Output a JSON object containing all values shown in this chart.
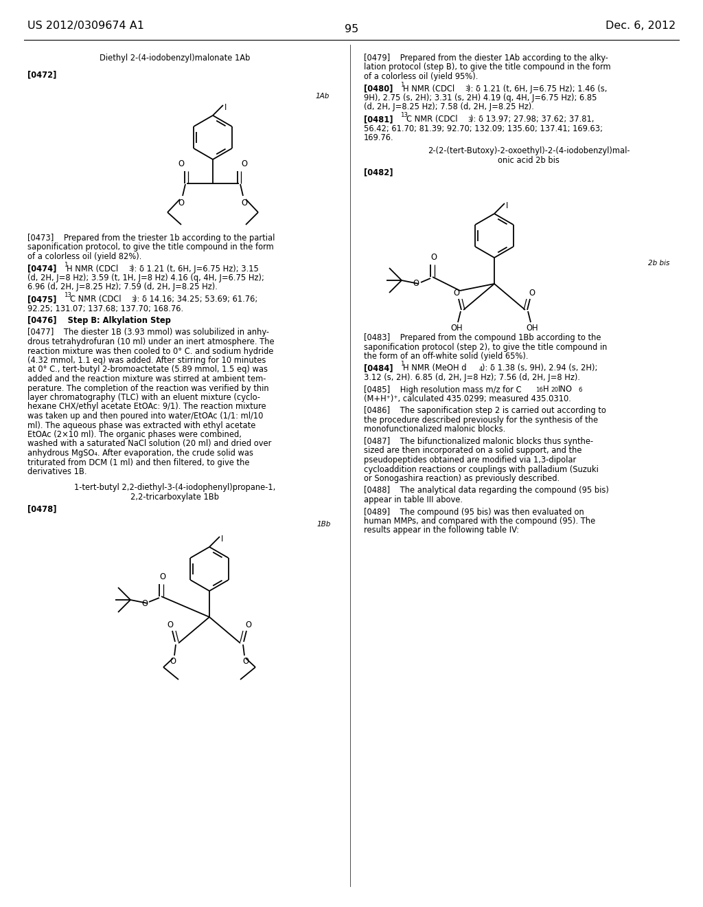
{
  "page_header_left": "US 2012/0309674 A1",
  "page_header_right": "Dec. 6, 2012",
  "page_number": "95",
  "bg_color": "#ffffff",
  "compound1_title": "Diethyl 2-(4-iodobenzyl)malonate 1Ab",
  "compound1_label": "[0472]",
  "compound1_tag": "1Ab",
  "compound2_title_line1": "1-tert-butyl 2,2-diethyl-3-(4-iodophenyl)propane-1,",
  "compound2_title_line2": "2,2-tricarboxylate 1Bb",
  "compound2_label": "[0478]",
  "compound2_tag": "1Bb",
  "compound3_title_line1": "2-(2-(tert-Butoxy)-2-oxoethyl)-2-(4-iodobenzyl)mal-",
  "compound3_title_line2": "onic acid 2b bis",
  "compound3_label": "[0482]",
  "compound3_tag": "2b bis"
}
